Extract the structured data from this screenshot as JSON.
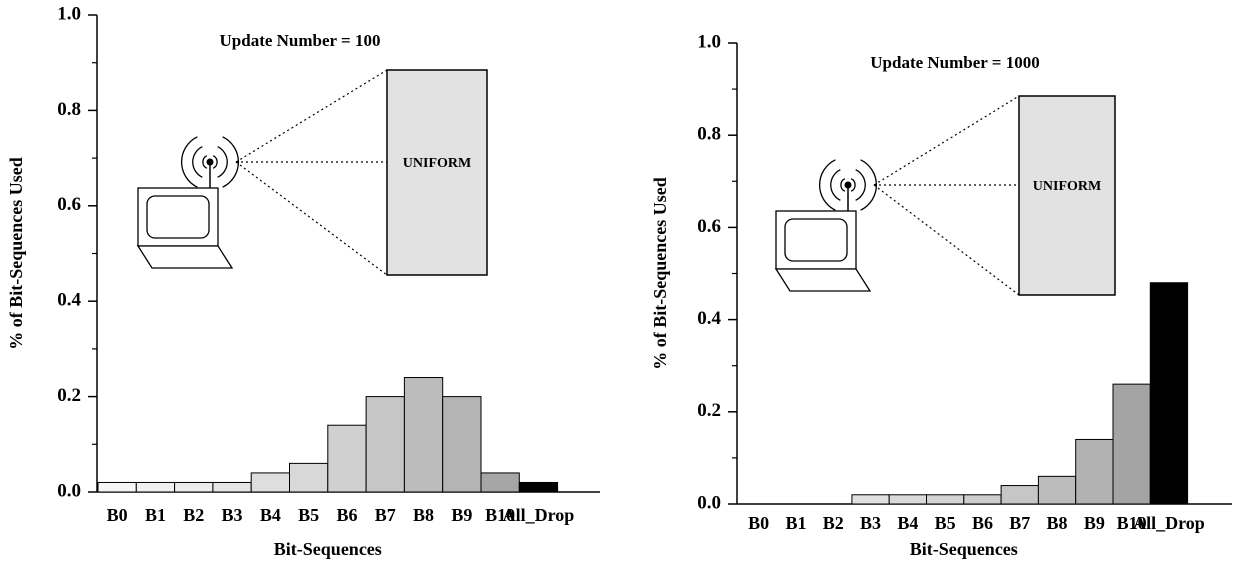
{
  "chart_data": [
    {
      "type": "bar",
      "title": "Update Number = 100",
      "annotation": "UNIFORM",
      "xlabel": "Bit-Sequences",
      "ylabel": "% of Bit-Sequences Used",
      "categories": [
        "B0",
        "B1",
        "B2",
        "B3",
        "B4",
        "B5",
        "B6",
        "B7",
        "B8",
        "B9",
        "B10",
        "All_Drop"
      ],
      "values": [
        0.02,
        0.02,
        0.02,
        0.02,
        0.04,
        0.06,
        0.14,
        0.2,
        0.24,
        0.2,
        0.04,
        0.02
      ],
      "colors": [
        "#f6f6f6",
        "#f0f0f0",
        "#ececec",
        "#e6e6e6",
        "#dedede",
        "#d8d8d8",
        "#d0d0d0",
        "#c6c6c6",
        "#bcbcbc",
        "#b4b4b4",
        "#a6a6a6",
        "#000000"
      ],
      "ylim": [
        0,
        1.0
      ],
      "yticks": [
        {
          "value": 0,
          "label": "0.0"
        },
        0.2,
        0.4,
        0.6,
        0.8,
        {
          "value": 1.0,
          "label": "1.0"
        }
      ],
      "minor_yticks": [
        0.1,
        0.3,
        0.5,
        0.7,
        0.9
      ]
    },
    {
      "type": "bar",
      "title": "Update Number = 1000",
      "annotation": "UNIFORM",
      "xlabel": "Bit-Sequences",
      "ylabel": "% of Bit-Sequences Used",
      "categories": [
        "B0",
        "B1",
        "B2",
        "B3",
        "B4",
        "B5",
        "B6",
        "B7",
        "B8",
        "B9",
        "B10",
        "All_Drop"
      ],
      "values": [
        0,
        0,
        0,
        0.02,
        0.02,
        0.02,
        0.02,
        0.04,
        0.06,
        0.14,
        0.26,
        0.48
      ],
      "colors": [
        "#f6f6f6",
        "#f0f0f0",
        "#ececec",
        "#e0e0e0",
        "#dadada",
        "#d4d4d4",
        "#cecece",
        "#c6c6c6",
        "#bcbcbc",
        "#b2b2b2",
        "#a4a4a4",
        "#000000"
      ],
      "ylim": [
        0,
        1.0
      ],
      "yticks": [
        {
          "value": 0,
          "label": "0.0"
        },
        0.2,
        0.4,
        0.6,
        0.8,
        {
          "value": 1.0,
          "label": "1.0"
        }
      ],
      "minor_yticks": [
        0.1,
        0.3,
        0.5,
        0.7,
        0.9
      ]
    }
  ]
}
